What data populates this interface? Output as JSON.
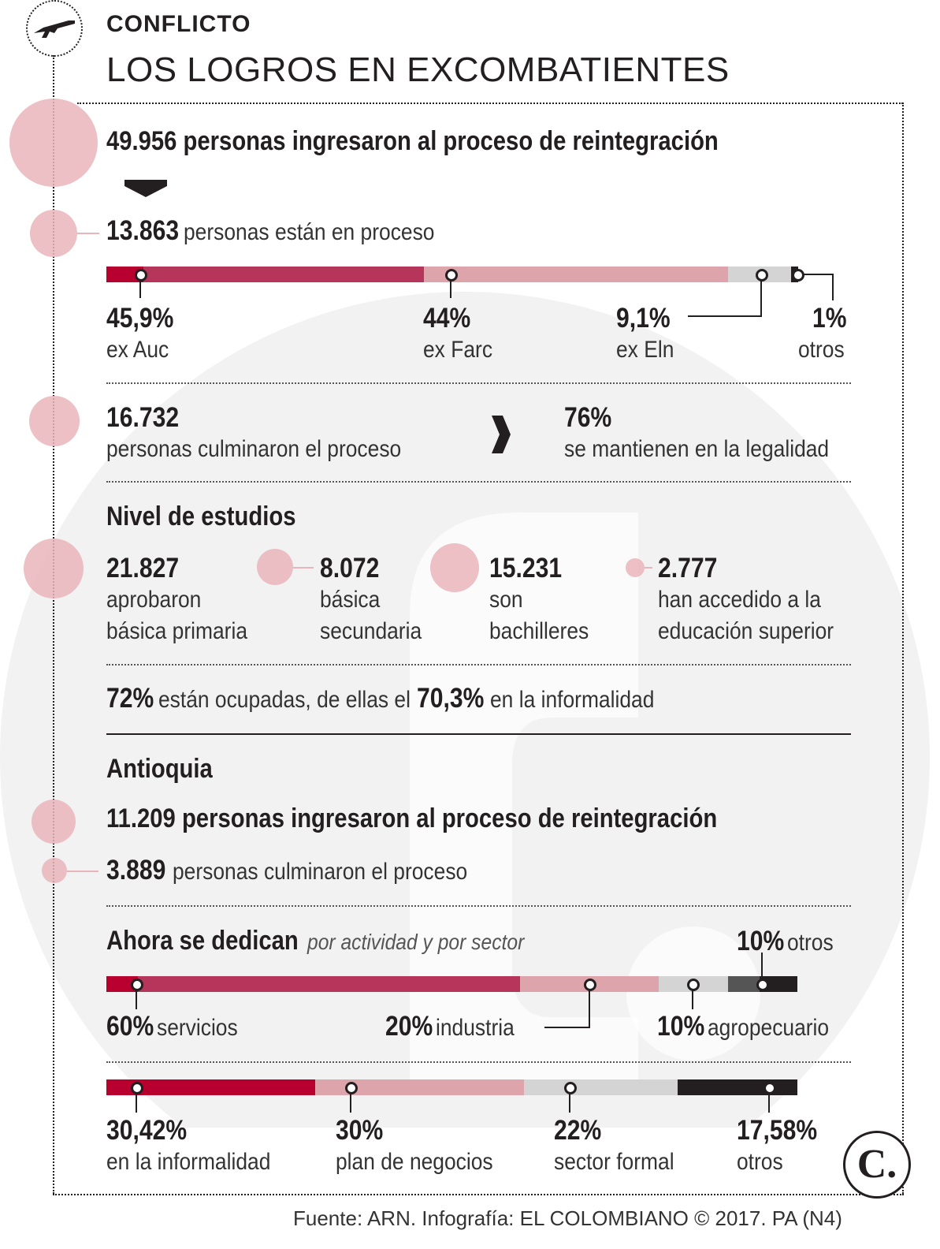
{
  "header": {
    "kicker": "CONFLICTO",
    "title": "LOS LOGROS EN EXCOMBATIENTES",
    "icon": "rifle-icon"
  },
  "national": {
    "ingresaron": "49.956 personas ingresaron al proceso de reintegración",
    "en_proceso_num": "13.863",
    "en_proceso_text": "personas están en proceso",
    "culminaron_num": "16.732",
    "culminaron_text": "personas culminaron el proceso",
    "legalidad_num": "76%",
    "legalidad_text": "se mantienen en la legalidad",
    "ocupadas": {
      "pct1": "72%",
      "text1": "están ocupadas, de ellas el",
      "pct2": "70,3%",
      "text2": "en la informalidad"
    }
  },
  "estudios": {
    "title": "Nivel de estudios",
    "items": [
      {
        "num": "21.827",
        "line1": "aprobaron",
        "line2": "básica primaria"
      },
      {
        "num": "8.072",
        "line1": "básica",
        "line2": "secundaria"
      },
      {
        "num": "15.231",
        "line1": "son",
        "line2": "bachilleres"
      },
      {
        "num": "2.777",
        "line1": "han accedido a la",
        "line2": "educación superior"
      }
    ]
  },
  "antioquia": {
    "title": "Antioquia",
    "ingresaron": "11.209 personas ingresaron al proceso de reintegración",
    "culminaron_num": "3.889",
    "culminaron_text": "personas culminaron el proceso",
    "dedican_title": "Ahora se dedican",
    "dedican_sub": "por actividad y por sector"
  },
  "chart_data": [
    {
      "type": "bar",
      "title": "13.863 personas están en proceso",
      "categories": [
        "ex Auc",
        "ex Farc",
        "ex Eln",
        "otros"
      ],
      "values": [
        45.9,
        44,
        9.1,
        1
      ],
      "labels": [
        "45,9%",
        "44%",
        "9,1%",
        "1%"
      ],
      "colors": [
        "#b6355a",
        "#dea4ab",
        "#d4d4d4",
        "#231f20"
      ]
    },
    {
      "type": "bar",
      "title": "Ahora se dedican por actividad",
      "categories": [
        "servicios",
        "industria",
        "agropecuario",
        "otros"
      ],
      "values": [
        60,
        20,
        10,
        10
      ],
      "labels": [
        "60%",
        "20%",
        "10%",
        "10%"
      ],
      "colors": [
        "#b6355a",
        "#dea4ab",
        "#d4d4d4",
        "#555555"
      ]
    },
    {
      "type": "bar",
      "title": "Ahora se dedican por sector",
      "categories": [
        "en la informalidad",
        "plan de negocios",
        "sector formal",
        "otros"
      ],
      "values": [
        30.42,
        30,
        22,
        17.58
      ],
      "labels": [
        "30,42%",
        "30%",
        "22%",
        "17,58%"
      ],
      "colors": [
        "#b8002f",
        "#dea4ab",
        "#d4d4d4",
        "#231f20"
      ]
    }
  ],
  "footer": {
    "source": "Fuente: ARN. Infografía: EL COLOMBIANO © 2017. PA (N4)",
    "logo": "C."
  }
}
